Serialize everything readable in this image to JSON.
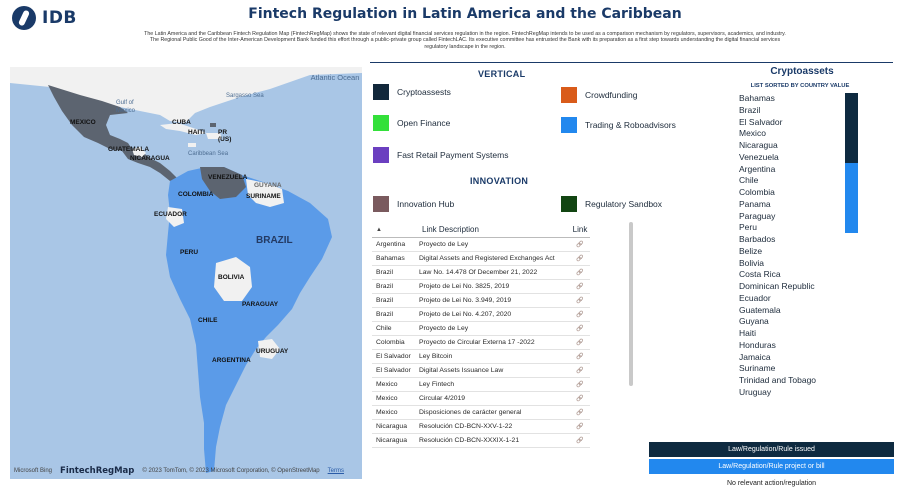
{
  "header": {
    "logo_text": "IDB",
    "title": "Fintech Regulation in Latin America and the Caribbean",
    "intro": "The Latin America and the Caribbean Fintech Regulation Map (FintechRegMap) shows the state of relevant digital financial services regulation in the region. FintechRegMap intends to be used as a comparison mechanism by regulators, supervisors, academics, and industry. The Regional Public Good of the Inter-American Development Bank funded this effort through a public-private group called FintechLAC. Its executive committee has entrusted the Bank with its preparation as a first step towards understanding the digital financial services regulatory landscape in the region."
  },
  "map": {
    "ocean_label": "Atlantic Ocean",
    "labels": {
      "sargasso": "Sargasso Sea",
      "gulf": "Gulf of Mexico",
      "caribbean": "Caribbean Sea",
      "mexico": "MEXICO",
      "cuba": "CUBA",
      "haiti": "HAITI",
      "pr": "PR (US)",
      "guatemala": "GUATEMALA",
      "nicaragua": "NICARAGUA",
      "venezuela": "VENEZUELA",
      "guyana": "GUYANA",
      "suriname": "SURINAME",
      "colombia": "COLOMBIA",
      "ecuador": "ECUADOR",
      "brazil": "BRAZIL",
      "peru": "PERU",
      "bolivia": "BOLIVIA",
      "paraguay": "PARAGUAY",
      "chile": "CHILE",
      "argentina": "ARGENTINA",
      "uruguay": "URUGUAY"
    },
    "footer": {
      "bing": "Microsoft Bing",
      "brand": "FintechRegMap",
      "copyright": "© 2023 TomTom, © 2023 Microsoft Corporation, © OpenStreetMap",
      "terms": "Terms"
    },
    "colors": {
      "ocean": "#a9c6e6",
      "issued": "#5c6470",
      "project": "#5b9be8",
      "none": "#f3f3f3"
    }
  },
  "vertical": {
    "heading": "VERTICAL",
    "items": [
      {
        "label": "Cryptoassests",
        "color": "#12283b"
      },
      {
        "label": "Crowdfunding",
        "color": "#d95b1a"
      },
      {
        "label": "Open Finance",
        "color": "#33e03a"
      },
      {
        "label": "Trading & Roboadvisors",
        "color": "#2288ee"
      },
      {
        "label": "Fast Retail Payment Systems",
        "color": "#6b3fc0"
      }
    ]
  },
  "innovation": {
    "heading": "INNOVATION",
    "items": [
      {
        "label": "Innovation Hub",
        "color": "#7a5a5e"
      },
      {
        "label": "Regulatory Sandbox",
        "color": "#124512"
      }
    ]
  },
  "table": {
    "headers": {
      "country": "",
      "description": "Link Description",
      "link": "Link"
    },
    "sort_icon": "▲",
    "rows": [
      {
        "country": "Argentina",
        "description": "Proyecto de Ley"
      },
      {
        "country": "Bahamas",
        "description": "Digital Assets and Registered Exchanges Act"
      },
      {
        "country": "Brazil",
        "description": "Law No. 14.478 Of December 21, 2022"
      },
      {
        "country": "Brazil",
        "description": "Projeto de Lei No. 3825, 2019"
      },
      {
        "country": "Brazil",
        "description": "Projeto de Lei No. 3.949, 2019"
      },
      {
        "country": "Brazil",
        "description": "Projeto de Lei No. 4.207, 2020"
      },
      {
        "country": "Chile",
        "description": "Proyecto de Ley"
      },
      {
        "country": "Colombia",
        "description": "Proyecto de Circular Externa 17 -2022"
      },
      {
        "country": "El Salvador",
        "description": "Ley Bitcoin"
      },
      {
        "country": "El Salvador",
        "description": "Digital Assets Issuance Law"
      },
      {
        "country": "Mexico",
        "description": "Ley Fintech"
      },
      {
        "country": "Mexico",
        "description": "Circular 4/2019"
      },
      {
        "country": "Mexico",
        "description": "Disposiciones de carácter general"
      },
      {
        "country": "Nicaragua",
        "description": "Resolución CD-BCN-XXV-1-22"
      },
      {
        "country": "Nicaragua",
        "description": "Resolución CD-BCN-XXXIX-1-21"
      }
    ]
  },
  "crypto": {
    "title": "Cryptoassets",
    "subtitle": "LIST SORTED BY COUNTRY VALUE",
    "countries": [
      "Bahamas",
      "Brazil",
      "El Salvador",
      "Mexico",
      "Nicaragua",
      "Venezuela",
      "Argentina",
      "Chile",
      "Colombia",
      "Panama",
      "Paraguay",
      "Peru",
      "Barbados",
      "Belize",
      "Bolivia",
      "Costa Rica",
      "Dominican Republic",
      "Ecuador",
      "Guatemala",
      "Guyana",
      "Haiti",
      "Honduras",
      "Jamaica",
      "Suriname",
      "Trinidad and Tobago",
      "Uruguay"
    ]
  },
  "status_legend": {
    "issued": "Law/Regulation/Rule issued",
    "project": "Law/Regulation/Rule project or bill",
    "none": "No relevant action/regulation"
  }
}
